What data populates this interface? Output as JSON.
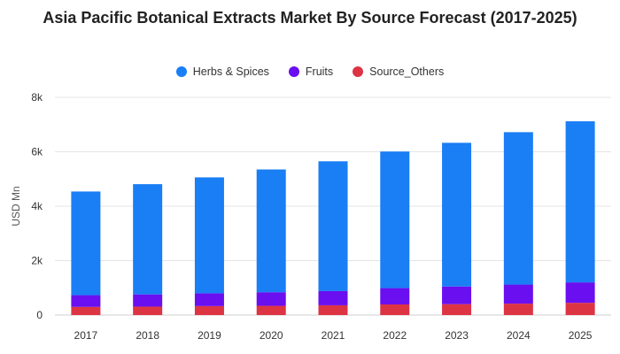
{
  "chart_data": {
    "type": "bar",
    "stacked": true,
    "title": "Asia Pacific Botanical Extracts Market By Source Forecast (2017-2025)",
    "xlabel": "",
    "ylabel": "USD Mn",
    "ylim": [
      0,
      8000
    ],
    "yticks": [
      0,
      2000,
      4000,
      6000,
      8000
    ],
    "ytick_labels": [
      "0",
      "2k",
      "4k",
      "6k",
      "8k"
    ],
    "grid": true,
    "legend_position": "top",
    "categories": [
      "2017",
      "2018",
      "2019",
      "2020",
      "2021",
      "2022",
      "2023",
      "2024",
      "2025"
    ],
    "series": [
      {
        "name": "Herbs & Spices",
        "color": "#1a7ef5",
        "values": [
          3810,
          4050,
          4260,
          4510,
          4770,
          5020,
          5280,
          5600,
          5920
        ]
      },
      {
        "name": "Fruits",
        "color": "#6a0ff0",
        "values": [
          430,
          450,
          470,
          500,
          520,
          600,
          650,
          700,
          750
        ]
      },
      {
        "name": "Source_Others",
        "color": "#dd3444",
        "values": [
          300,
          310,
          330,
          340,
          360,
          390,
          400,
          420,
          450
        ]
      }
    ]
  }
}
